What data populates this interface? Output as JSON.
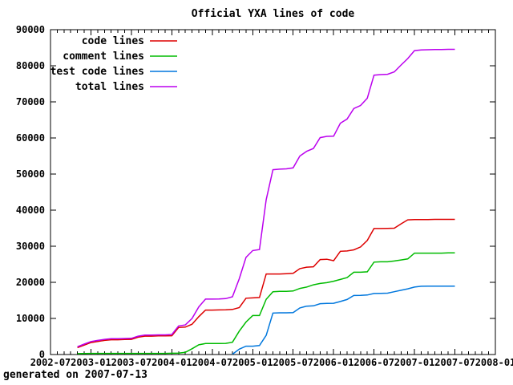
{
  "chart": {
    "title": "Official YXA lines of code"
  },
  "footer": {
    "note": "generated on 2007-07-13"
  },
  "colors": {
    "axis": "#000000",
    "background": "#ffffff",
    "code": "#dd0000",
    "comment": "#00bb00",
    "test": "#0077dd",
    "total": "#bb00ee"
  },
  "chart_data": {
    "type": "line",
    "title": "Official YXA lines of code",
    "grid": false,
    "legend_position": "top-left-inside",
    "x_axis": {
      "start": "2002-07",
      "end": "2008-01",
      "tick_labels": [
        "2002-07",
        "2003-01",
        "2003-07",
        "2004-01",
        "2004-07",
        "2005-01",
        "2005-07",
        "2006-01",
        "2006-07",
        "2007-01",
        "2007-07",
        "2008-01"
      ],
      "minor_tick_interval": "1 month"
    },
    "y_axis": {
      "min": 0,
      "max": 90000,
      "tick_step": 10000,
      "tick_labels": [
        "0",
        "10000",
        "20000",
        "30000",
        "40000",
        "50000",
        "60000",
        "70000",
        "80000",
        "90000"
      ]
    },
    "months": [
      "2002-11",
      "2002-12",
      "2003-01",
      "2003-02",
      "2003-03",
      "2003-04",
      "2003-05",
      "2003-06",
      "2003-07",
      "2003-08",
      "2003-09",
      "2003-10",
      "2003-11",
      "2003-12",
      "2004-01",
      "2004-02",
      "2004-03",
      "2004-04",
      "2004-05",
      "2004-06",
      "2004-07",
      "2004-08",
      "2004-09",
      "2004-10",
      "2004-11",
      "2004-12",
      "2005-01",
      "2005-02",
      "2005-03",
      "2005-04",
      "2005-05",
      "2005-06",
      "2005-07",
      "2005-08",
      "2005-09",
      "2005-10",
      "2005-11",
      "2005-12",
      "2006-01",
      "2006-02",
      "2006-03",
      "2006-04",
      "2006-05",
      "2006-06",
      "2006-07",
      "2006-08",
      "2006-09",
      "2006-10",
      "2006-11",
      "2006-12",
      "2007-01",
      "2007-02",
      "2007-03",
      "2007-04",
      "2007-05",
      "2007-06",
      "2007-07"
    ],
    "series": [
      {
        "name": "code lines",
        "color": "#dd0000",
        "values": [
          1900,
          2600,
          3300,
          3600,
          3900,
          4100,
          4100,
          4150,
          4200,
          4800,
          5100,
          5100,
          5150,
          5150,
          5200,
          7500,
          7600,
          8400,
          10500,
          12300,
          12300,
          12350,
          12400,
          12500,
          13000,
          15600,
          15700,
          15800,
          22300,
          22300,
          22300,
          22400,
          22500,
          23800,
          24200,
          24300,
          26300,
          26400,
          26000,
          28600,
          28700,
          29000,
          29800,
          31600,
          34900,
          34900,
          34950,
          35000,
          36200,
          37300,
          37400,
          37400,
          37400,
          37450,
          37450,
          37450,
          37450
        ]
      },
      {
        "name": "comment lines",
        "color": "#00bb00",
        "values": [
          250,
          280,
          300,
          300,
          300,
          300,
          300,
          300,
          300,
          300,
          300,
          300,
          300,
          300,
          350,
          400,
          600,
          1600,
          2700,
          3050,
          3050,
          3050,
          3100,
          3400,
          6500,
          9000,
          10800,
          10800,
          15300,
          17400,
          17500,
          17500,
          17600,
          18300,
          18700,
          19300,
          19700,
          19900,
          20300,
          20800,
          21300,
          22800,
          22800,
          22900,
          25600,
          25700,
          25700,
          25900,
          26200,
          26500,
          28100,
          28100,
          28100,
          28100,
          28100,
          28150,
          28150
        ]
      },
      {
        "name": "test code lines",
        "color": "#0077dd",
        "values": [
          null,
          null,
          null,
          null,
          null,
          null,
          null,
          null,
          null,
          null,
          null,
          null,
          null,
          null,
          null,
          null,
          null,
          null,
          null,
          null,
          null,
          null,
          null,
          100,
          1500,
          2300,
          2300,
          2500,
          5300,
          11500,
          11550,
          11550,
          11600,
          12900,
          13400,
          13500,
          14100,
          14150,
          14200,
          14700,
          15250,
          16350,
          16400,
          16500,
          16900,
          16950,
          17000,
          17400,
          17800,
          18200,
          18700,
          18900,
          18950,
          18950,
          18950,
          18950,
          18950
        ]
      },
      {
        "name": "total lines",
        "color": "#bb00ee",
        "values": [
          2150,
          2880,
          3600,
          3900,
          4200,
          4400,
          4400,
          4450,
          4500,
          5100,
          5400,
          5400,
          5450,
          5450,
          5550,
          7900,
          8200,
          10000,
          13200,
          15350,
          15350,
          15400,
          15500,
          16000,
          21000,
          26900,
          28800,
          29100,
          42900,
          51200,
          51350,
          51450,
          51700,
          55000,
          56300,
          57100,
          60100,
          60450,
          60500,
          64100,
          65250,
          68150,
          69000,
          71000,
          77400,
          77550,
          77650,
          78300,
          80200,
          82000,
          84200,
          84400,
          84450,
          84500,
          84500,
          84550,
          84550
        ]
      }
    ]
  }
}
